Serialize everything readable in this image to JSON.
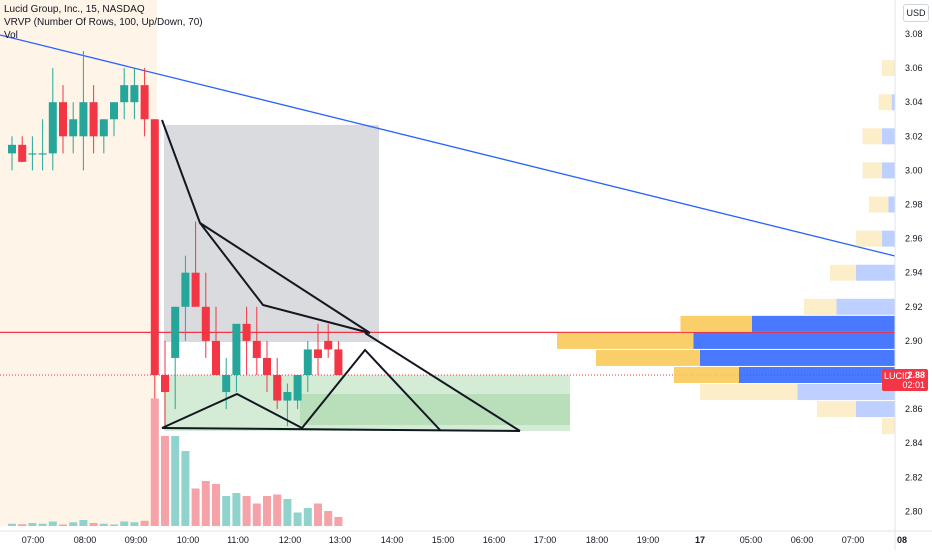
{
  "legend": {
    "symbol": "Lucid Group, Inc., 15, NASDAQ",
    "vrvp": "VRVP (Number Of Rows, 100, Up/Down, 70)",
    "vol": "Vol"
  },
  "currency": "USD",
  "price_tag": {
    "symbol": "LUCID",
    "price": "2.88",
    "countdown": "02:01"
  },
  "colors": {
    "up": "#26a69a",
    "down": "#f23645",
    "trendline": "#2962ff",
    "hline": "#f23645"
  },
  "chart_data": {
    "type": "candlestick",
    "y_axis": {
      "ticks": [
        "3.08",
        "3.06",
        "3.04",
        "3.02",
        "3.00",
        "2.98",
        "2.96",
        "2.94",
        "2.92",
        "2.90",
        "2.88",
        "2.86",
        "2.84",
        "2.82",
        "2.80"
      ],
      "range": [
        2.79,
        3.09
      ]
    },
    "x_axis": {
      "ticks": [
        "07:00",
        "08:00",
        "09:00",
        "10:00",
        "11:00",
        "12:00",
        "13:00",
        "14:00",
        "15:00",
        "16:00",
        "17:00",
        "18:00",
        "19:00",
        "17",
        "05:00",
        "06:00",
        "07:00",
        "08"
      ]
    },
    "candles": [
      {
        "o": 3.01,
        "h": 3.02,
        "l": 3.0,
        "c": 3.015
      },
      {
        "o": 3.015,
        "h": 3.02,
        "l": 3.005,
        "c": 3.005
      },
      {
        "o": 3.01,
        "h": 3.02,
        "l": 3.0,
        "c": 3.01
      },
      {
        "o": 3.01,
        "h": 3.03,
        "l": 3.0,
        "c": 3.01
      },
      {
        "o": 3.01,
        "h": 3.06,
        "l": 3.0,
        "c": 3.04
      },
      {
        "o": 3.04,
        "h": 3.05,
        "l": 3.01,
        "c": 3.02
      },
      {
        "o": 3.02,
        "h": 3.04,
        "l": 3.01,
        "c": 3.03
      },
      {
        "o": 3.02,
        "h": 3.07,
        "l": 3.0,
        "c": 3.04
      },
      {
        "o": 3.04,
        "h": 3.05,
        "l": 3.01,
        "c": 3.02
      },
      {
        "o": 3.02,
        "h": 3.03,
        "l": 3.01,
        "c": 3.03
      },
      {
        "o": 3.03,
        "h": 3.04,
        "l": 3.02,
        "c": 3.04
      },
      {
        "o": 3.04,
        "h": 3.06,
        "l": 3.03,
        "c": 3.05
      },
      {
        "o": 3.04,
        "h": 3.06,
        "l": 3.03,
        "c": 3.05
      },
      {
        "o": 3.05,
        "h": 3.06,
        "l": 3.02,
        "c": 3.03
      },
      {
        "o": 3.03,
        "h": 3.03,
        "l": 2.85,
        "c": 2.88
      },
      {
        "o": 2.88,
        "h": 2.9,
        "l": 2.85,
        "c": 2.87
      },
      {
        "o": 2.89,
        "h": 2.92,
        "l": 2.86,
        "c": 2.92
      },
      {
        "o": 2.92,
        "h": 2.95,
        "l": 2.9,
        "c": 2.94
      },
      {
        "o": 2.94,
        "h": 2.97,
        "l": 2.92,
        "c": 2.92
      },
      {
        "o": 2.92,
        "h": 2.94,
        "l": 2.89,
        "c": 2.9
      },
      {
        "o": 2.9,
        "h": 2.92,
        "l": 2.88,
        "c": 2.88
      },
      {
        "o": 2.87,
        "h": 2.89,
        "l": 2.86,
        "c": 2.88
      },
      {
        "o": 2.88,
        "h": 2.91,
        "l": 2.87,
        "c": 2.91
      },
      {
        "o": 2.91,
        "h": 2.92,
        "l": 2.88,
        "c": 2.9
      },
      {
        "o": 2.9,
        "h": 2.92,
        "l": 2.88,
        "c": 2.89
      },
      {
        "o": 2.89,
        "h": 2.9,
        "l": 2.87,
        "c": 2.88
      },
      {
        "o": 2.88,
        "h": 2.89,
        "l": 2.86,
        "c": 2.865
      },
      {
        "o": 2.865,
        "h": 2.875,
        "l": 2.85,
        "c": 2.87
      },
      {
        "o": 2.865,
        "h": 2.88,
        "l": 2.86,
        "c": 2.88
      },
      {
        "o": 2.88,
        "h": 2.9,
        "l": 2.87,
        "c": 2.895
      },
      {
        "o": 2.895,
        "h": 2.91,
        "l": 2.88,
        "c": 2.89
      },
      {
        "o": 2.9,
        "h": 2.91,
        "l": 2.89,
        "c": 2.895
      },
      {
        "o": 2.895,
        "h": 2.9,
        "l": 2.88,
        "c": 2.88
      }
    ],
    "volume": [
      0.15,
      0.12,
      0.2,
      0.15,
      0.3,
      0.1,
      0.25,
      0.4,
      0.2,
      0.15,
      0.1,
      0.3,
      0.25,
      0.35,
      8.5,
      6.0,
      6.0,
      5.0,
      2.5,
      3.0,
      2.8,
      2.0,
      2.2,
      2.0,
      1.5,
      2.0,
      2.1,
      1.8,
      0.9,
      1.2,
      1.5,
      1.0,
      0.6
    ],
    "volume_profile": [
      {
        "p": 3.06,
        "up": 0.02,
        "down": 0.0
      },
      {
        "p": 3.04,
        "up": 0.02,
        "down": 0.005
      },
      {
        "p": 3.02,
        "up": 0.03,
        "down": 0.02
      },
      {
        "p": 3.0,
        "up": 0.03,
        "down": 0.02
      },
      {
        "p": 2.98,
        "up": 0.03,
        "down": 0.01
      },
      {
        "p": 2.96,
        "up": 0.04,
        "down": 0.02
      },
      {
        "p": 2.94,
        "up": 0.04,
        "down": 0.06
      },
      {
        "p": 2.92,
        "up": 0.05,
        "down": 0.09
      },
      {
        "p": 2.91,
        "up": 0.11,
        "down": 0.22
      },
      {
        "p": 2.9,
        "up": 0.21,
        "down": 0.31
      },
      {
        "p": 2.89,
        "up": 0.16,
        "down": 0.3
      },
      {
        "p": 2.88,
        "up": 0.1,
        "down": 0.24
      },
      {
        "p": 2.87,
        "up": 0.15,
        "down": 0.15
      },
      {
        "p": 2.86,
        "up": 0.06,
        "down": 0.06
      },
      {
        "p": 2.85,
        "up": 0.02,
        "down": 0.0
      }
    ],
    "horizontal_line": 2.905,
    "last_price": 2.88
  }
}
